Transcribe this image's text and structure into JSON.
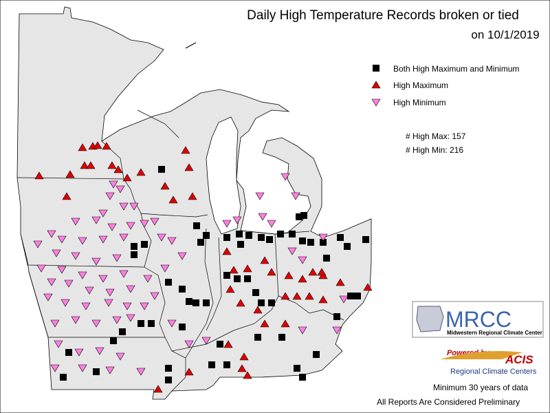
{
  "title": {
    "line1": "Daily High Temperature Records broken or tied",
    "line2": "on 10/1/2019"
  },
  "legend": {
    "items": [
      "Both High Maximum and Minimum",
      "High Maximum",
      "High Minimum"
    ]
  },
  "counts": [
    "# High Max: 157",
    "# High Min: 216"
  ],
  "logo": {
    "name": "MRCC",
    "subtitle": "Midwestern Regional Climate Center"
  },
  "acis": {
    "powered": "Powered by",
    "name": "ACIS",
    "subtitle": "Regional Climate Centers"
  },
  "footer": [
    "Minimum 30 years of data",
    "All Reports Are Considered Preliminary"
  ]
}
